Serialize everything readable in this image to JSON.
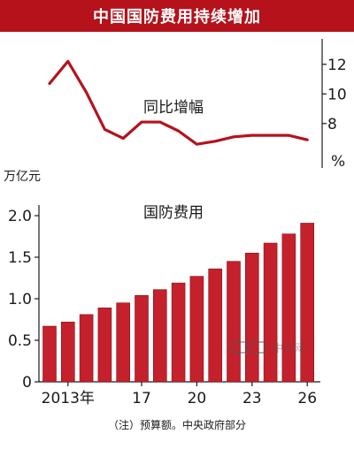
{
  "title": "中国国防费用持续增加",
  "note": "（注）预算额。中央政府部分",
  "watermark": "中文网",
  "chart_data": [
    {
      "type": "line",
      "title": "同比增幅",
      "x": [
        2012,
        2013,
        2014,
        2015,
        2016,
        2017,
        2018,
        2019,
        2020,
        2021,
        2022,
        2023,
        2024,
        2025,
        2026
      ],
      "values": [
        10.7,
        12.2,
        10.1,
        7.6,
        7.0,
        8.1,
        8.1,
        7.5,
        6.6,
        6.8,
        7.1,
        7.2,
        7.2,
        7.2,
        6.9
      ],
      "ylim": [
        5.0,
        13.0
      ],
      "yticks": [
        "12",
        "10",
        "8"
      ],
      "yunit": "%",
      "color": "#b5121b"
    },
    {
      "type": "bar",
      "title": "国防费用",
      "ylabel": "万亿元",
      "categories": [
        "2012",
        "2013",
        "2014",
        "2015",
        "2016",
        "2017",
        "2018",
        "2019",
        "2020",
        "2021",
        "2022",
        "2023",
        "2024",
        "2025",
        "2026"
      ],
      "xticks": [
        "2013年",
        "17",
        "20",
        "23",
        "26"
      ],
      "values": [
        0.67,
        0.72,
        0.81,
        0.89,
        0.95,
        1.04,
        1.11,
        1.19,
        1.27,
        1.36,
        1.45,
        1.55,
        1.67,
        1.78,
        1.91
      ],
      "ylim": [
        0,
        2.0
      ],
      "yticks": [
        "0",
        "0.5",
        "1.0",
        "1.5",
        "2.0"
      ],
      "grid": false,
      "color": "#c4212d"
    }
  ]
}
